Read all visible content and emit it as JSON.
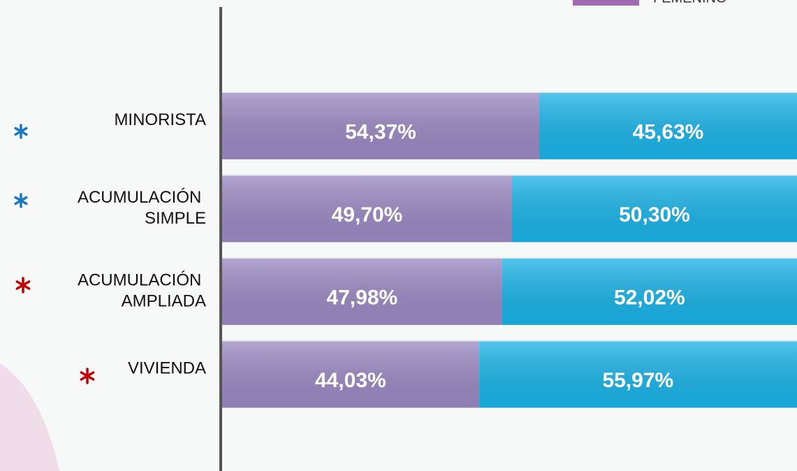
{
  "chart_data": {
    "type": "bar",
    "orientation": "horizontal",
    "stacked": true,
    "categories": [
      "MINORISTA",
      "ACUMULACIÓN SIMPLE",
      "ACUMULACIÓN AMPLIADA",
      "VIVIENDA"
    ],
    "series": [
      {
        "name": "FEMENINO",
        "color": "#9a88c2",
        "values": [
          54.37,
          49.7,
          47.98,
          44.03
        ],
        "value_labels": [
          "54,37%",
          "49,70%",
          "47,98%",
          "44,03%"
        ]
      },
      {
        "color": "#1ab2e6",
        "values": [
          45.63,
          50.3,
          52.02,
          55.97
        ],
        "value_labels": [
          "45,63%",
          "50,30%",
          "52,02%",
          "55,97%"
        ]
      }
    ],
    "xlim": [
      0,
      100
    ]
  }
}
